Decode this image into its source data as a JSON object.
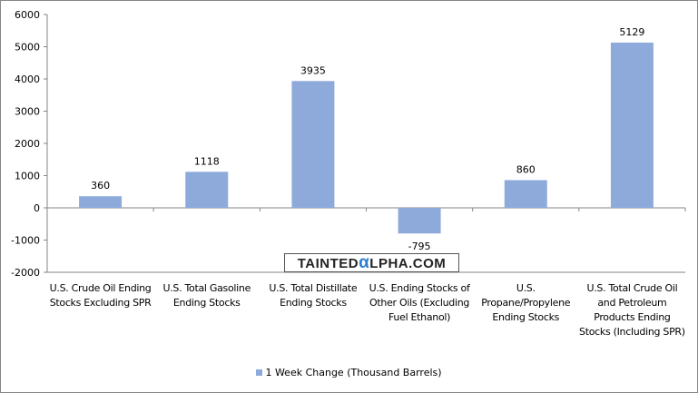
{
  "chart_data": {
    "type": "bar",
    "title": "",
    "xlabel": "",
    "ylabel": "",
    "ylim": [
      -2000,
      6000
    ],
    "yticks": [
      6000,
      5000,
      4000,
      3000,
      2000,
      1000,
      0,
      -1000,
      -2000
    ],
    "grid": false,
    "legend_position": "bottom",
    "categories": [
      "U.S. Crude Oil Ending Stocks Excluding SPR",
      "U.S. Total Gasoline Ending Stocks",
      "U.S. Total Distillate Ending Stocks",
      "U.S. Ending Stocks of Other Oils (Excluding Fuel Ethanol)",
      "U.S. Propane/Propylene Ending Stocks",
      "U.S. Total Crude Oil and Petroleum Products Ending Stocks (Including SPR)"
    ],
    "series": [
      {
        "name": "1 Week Change (Thousand Barrels)",
        "color": "#8eaadb",
        "values": [
          360,
          1118,
          3935,
          -795,
          860,
          5129
        ]
      }
    ]
  },
  "watermark": "TAINTEDALPHA.COM"
}
